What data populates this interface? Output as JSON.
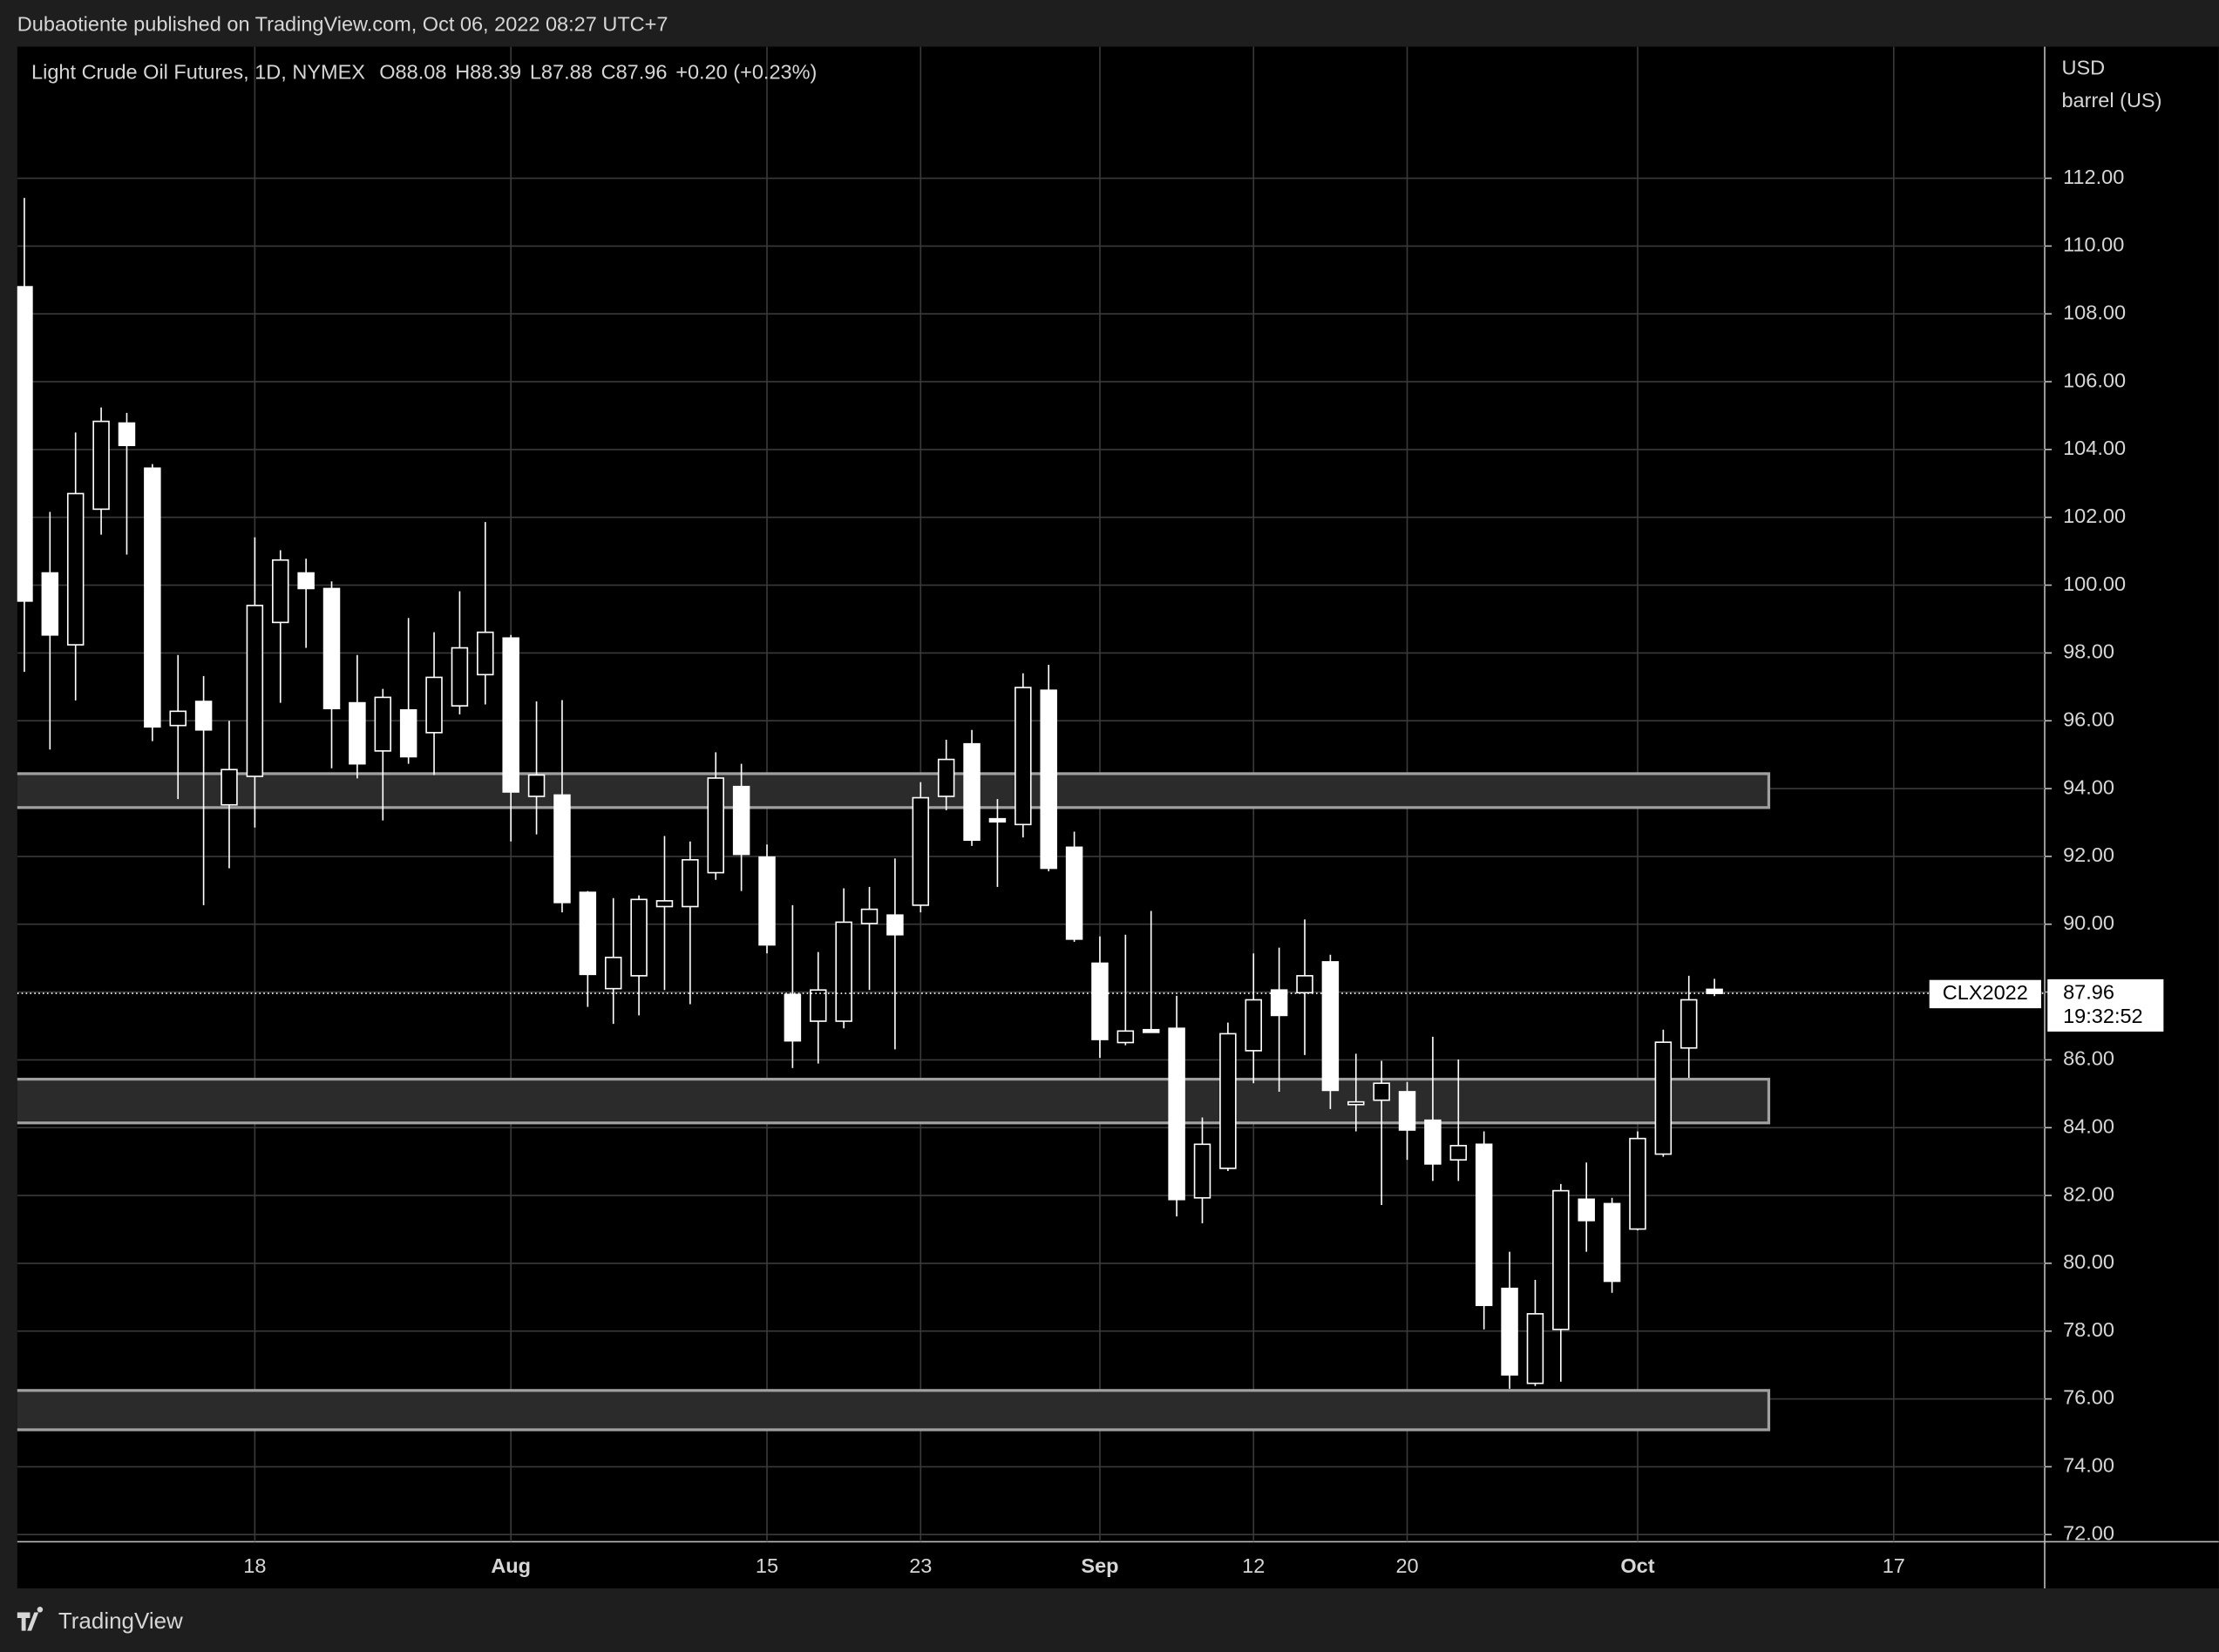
{
  "header": {
    "publisher_line": "Dubaotiente published on TradingView.com, Oct 06, 2022 08:27 UTC+7"
  },
  "footer": {
    "brand": "TradingView"
  },
  "chart_data": {
    "type": "candlestick",
    "title": "Light Crude Oil Futures, 1D, NYMEX",
    "ohlc_prefixes": [
      "O",
      "H",
      "L",
      "C"
    ],
    "change_label": "+0.20 (+0.23%)",
    "y_unit_labels": [
      "USD",
      "barrel (US)"
    ],
    "last_price_tag": "CLX2022",
    "countdown": "19:32:52",
    "candle_color": "#ffffff",
    "hollow_fill": "#000000",
    "grid": true,
    "categories": [
      null,
      null,
      null,
      null,
      null,
      null,
      null,
      null,
      null,
      "18",
      null,
      null,
      null,
      null,
      null,
      null,
      null,
      null,
      null,
      "Aug",
      null,
      null,
      null,
      null,
      null,
      null,
      null,
      null,
      null,
      "15",
      null,
      null,
      null,
      null,
      null,
      "23",
      null,
      null,
      null,
      null,
      null,
      null,
      "Sep",
      null,
      null,
      null,
      null,
      null,
      "12",
      null,
      null,
      null,
      null,
      null,
      "20",
      null,
      null,
      null,
      null,
      null,
      null,
      null,
      null,
      "Oct",
      null,
      null,
      null,
      null,
      null,
      null,
      null,
      null,
      null,
      "17",
      null,
      null,
      null,
      null,
      null
    ],
    "open": [
      108.8,
      100.36,
      98.24,
      102.24,
      104.78,
      103.45,
      95.86,
      96.57,
      93.52,
      94.36,
      98.9,
      100.36,
      99.9,
      96.53,
      95.11,
      96.32,
      95.65,
      96.44,
      97.36,
      98.44,
      93.77,
      93.81,
      90.94,
      88.1,
      88.48,
      90.52,
      90.52,
      91.52,
      94.06,
      91.98,
      87.93,
      87.14,
      87.14,
      90.02,
      90.27,
      90.56,
      93.77,
      95.32,
      93.11,
      92.94,
      96.9,
      92.27,
      88.85,
      86.51,
      86.89,
      86.93,
      81.93,
      82.8,
      86.27,
      88.06,
      87.98,
      88.89,
      84.68,
      84.81,
      85.06,
      84.22,
      83.05,
      83.51,
      79.26,
      76.46,
      78.05,
      81.89,
      81.76,
      81.01,
      83.22,
      86.35,
      88.08,
      null,
      null,
      null,
      null,
      null,
      null,
      null,
      null,
      null,
      null,
      null,
      null
    ],
    "high": [
      111.42,
      102.16,
      104.5,
      105.24,
      105.08,
      103.57,
      97.94,
      97.32,
      96.0,
      101.41,
      101.03,
      100.78,
      100.11,
      97.94,
      96.94,
      99.03,
      98.61,
      99.82,
      101.86,
      98.53,
      96.57,
      96.61,
      90.98,
      90.77,
      90.85,
      92.6,
      92.44,
      95.07,
      94.73,
      92.35,
      90.56,
      89.18,
      91.06,
      91.1,
      91.94,
      94.19,
      95.44,
      95.73,
      93.69,
      97.4,
      97.65,
      92.73,
      89.64,
      89.69,
      90.39,
      87.89,
      84.3,
      87.1,
      89.14,
      89.31,
      90.14,
      89.1,
      86.18,
      85.97,
      85.35,
      86.68,
      86.01,
      83.89,
      80.34,
      79.51,
      82.34,
      82.97,
      81.93,
      83.89,
      86.89,
      88.48,
      88.39,
      null,
      null,
      null,
      null,
      null,
      null,
      null,
      null,
      null,
      null,
      null,
      null
    ],
    "low": [
      97.44,
      95.15,
      96.6,
      101.49,
      100.9,
      95.4,
      93.69,
      90.56,
      91.65,
      92.85,
      96.53,
      98.15,
      94.6,
      94.3,
      93.06,
      94.73,
      94.4,
      96.19,
      96.48,
      92.44,
      92.65,
      90.35,
      87.56,
      87.06,
      87.31,
      88.06,
      87.64,
      91.31,
      90.98,
      89.14,
      85.76,
      85.89,
      86.93,
      88.06,
      86.31,
      90.35,
      93.36,
      92.31,
      91.1,
      92.56,
      91.56,
      89.48,
      86.06,
      86.43,
      86.81,
      81.38,
      81.18,
      82.72,
      85.31,
      85.06,
      86.14,
      84.55,
      83.89,
      81.72,
      83.05,
      82.43,
      82.43,
      78.05,
      76.3,
      76.38,
      76.51,
      80.34,
      79.13,
      80.97,
      83.14,
      85.47,
      87.88,
      null,
      null,
      null,
      null,
      null,
      null,
      null,
      null,
      null,
      null,
      null,
      null
    ],
    "close": [
      99.53,
      98.53,
      102.7,
      104.83,
      104.12,
      95.82,
      96.28,
      95.73,
      94.56,
      99.4,
      100.74,
      99.9,
      96.36,
      94.73,
      96.69,
      94.94,
      97.28,
      98.15,
      98.61,
      93.9,
      94.4,
      90.64,
      88.52,
      89.02,
      90.73,
      90.69,
      91.9,
      94.31,
      92.06,
      89.39,
      86.56,
      88.06,
      90.06,
      90.44,
      89.69,
      93.73,
      94.86,
      92.48,
      93.02,
      96.98,
      91.65,
      89.56,
      86.6,
      86.85,
      86.81,
      81.88,
      83.51,
      86.77,
      87.77,
      87.31,
      88.48,
      85.1,
      84.76,
      85.31,
      83.93,
      82.93,
      83.47,
      78.76,
      76.71,
      78.51,
      82.14,
      81.26,
      79.47,
      83.68,
      86.52,
      87.77,
      87.96,
      null,
      null,
      null,
      null,
      null,
      null,
      null,
      null,
      null,
      null,
      null,
      null
    ],
    "zones": [
      {
        "high": 94.44,
        "low": 93.44
      },
      {
        "high": 85.43,
        "low": 84.14
      },
      {
        "high": 76.25,
        "low": 75.09
      }
    ],
    "zone_fill": "#2b2b2b",
    "zone_border": "#a0a0a0",
    "ylim": [
      71.79,
      115.88
    ],
    "yticks": [
      {
        "value": 72,
        "label": "72.00"
      },
      {
        "value": 74,
        "label": "74.00"
      },
      {
        "value": 76,
        "label": "76.00"
      },
      {
        "value": 78,
        "label": "78.00"
      },
      {
        "value": 80,
        "label": "80.00"
      },
      {
        "value": 82,
        "label": "82.00"
      },
      {
        "value": 84,
        "label": "84.00"
      },
      {
        "value": 86,
        "label": "86.00"
      },
      {
        "value": 88,
        "label": "88.00"
      },
      {
        "value": 90,
        "label": "90.00"
      },
      {
        "value": 92,
        "label": "92.00"
      },
      {
        "value": 94,
        "label": "94.00"
      },
      {
        "value": 96,
        "label": "96.00"
      },
      {
        "value": 98,
        "label": "98.00"
      },
      {
        "value": 100,
        "label": "100.00"
      },
      {
        "value": 102,
        "label": "102.00"
      },
      {
        "value": 104,
        "label": "104.00"
      },
      {
        "value": 106,
        "label": "106.00"
      },
      {
        "value": 108,
        "label": "108.00"
      },
      {
        "value": 110,
        "label": "110.00"
      },
      {
        "value": 112,
        "label": "112.00"
      }
    ]
  }
}
